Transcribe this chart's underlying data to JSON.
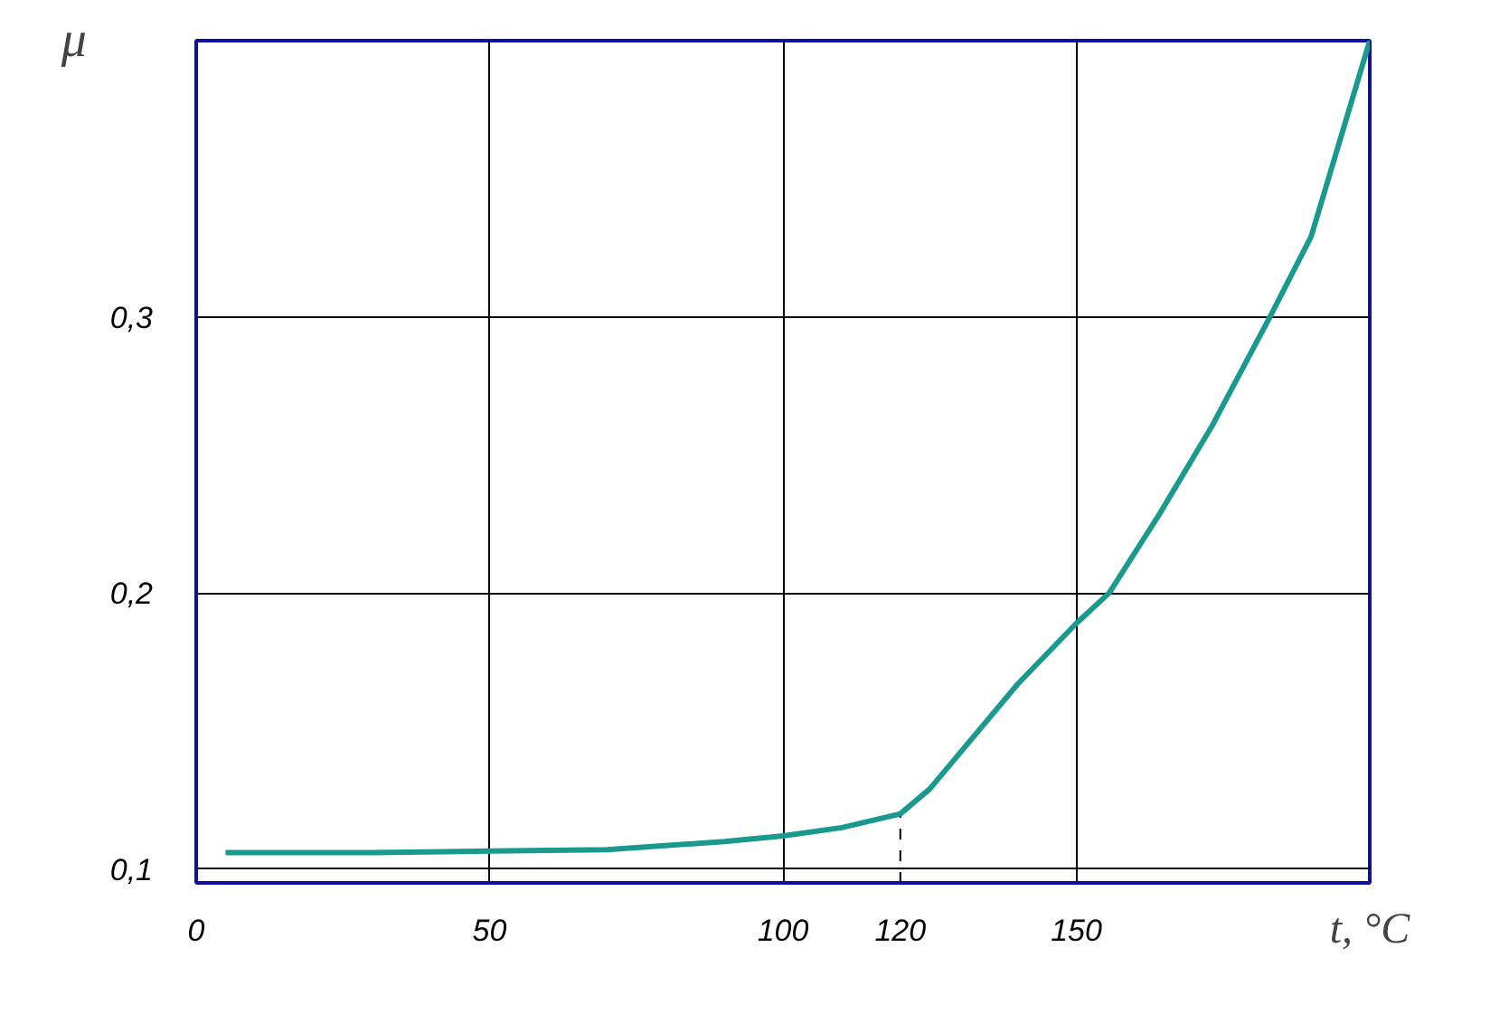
{
  "chart_data": {
    "type": "line",
    "xlabel": "t, °C",
    "ylabel": "μ",
    "xlim": [
      0,
      200
    ],
    "ylim": [
      0.095,
      0.4
    ],
    "xticks": [
      0,
      50,
      100,
      120,
      150
    ],
    "yticks": [
      {
        "value": 0.1,
        "label": "0,1"
      },
      {
        "value": 0.2,
        "label": "0,2"
      },
      {
        "value": 0.3,
        "label": "0,3"
      }
    ],
    "grid": true,
    "line_style": "solid",
    "marker": "none",
    "ref_lines": [
      {
        "axis": "x",
        "value": 120,
        "line_style": "dashed",
        "color": "#000000"
      }
    ],
    "series": [
      {
        "color": "#1a9a8f",
        "x": [
          5,
          30,
          50,
          70,
          90,
          100,
          110,
          120,
          125,
          140,
          150,
          155.6,
          164,
          173,
          183,
          190,
          200
        ],
        "values": [
          0.106,
          0.106,
          0.1065,
          0.107,
          0.11,
          0.112,
          0.115,
          0.12,
          0.129,
          0.167,
          0.189,
          0.2,
          0.228,
          0.26,
          0.3,
          0.329,
          0.4
        ]
      }
    ]
  }
}
